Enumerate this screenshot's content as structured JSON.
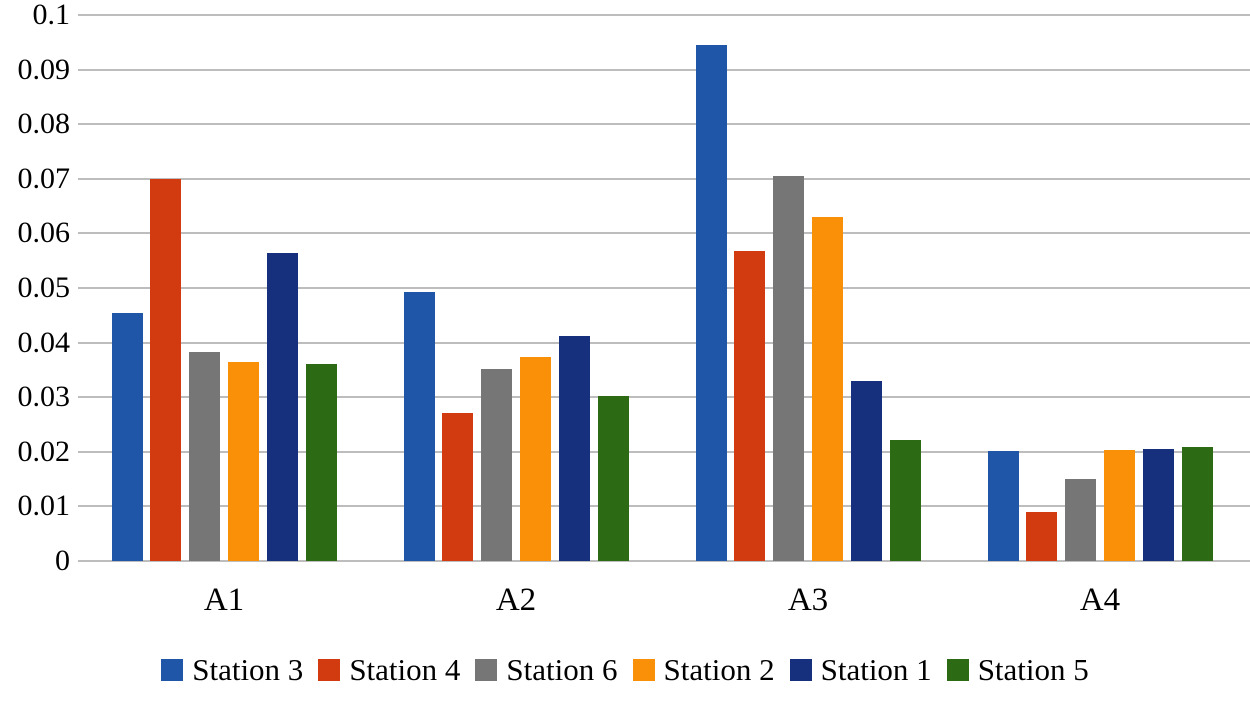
{
  "chart_data": {
    "type": "bar",
    "title": "",
    "xlabel": "",
    "ylabel": "",
    "categories": [
      "A1",
      "A2",
      "A3",
      "A4"
    ],
    "series": [
      {
        "name": "Station 3",
        "color": "#1F56A7",
        "values": [
          0.0455,
          0.0492,
          0.0945,
          0.0201
        ]
      },
      {
        "name": "Station 4",
        "color": "#D23A10",
        "values": [
          0.07,
          0.0271,
          0.0568,
          0.0089
        ]
      },
      {
        "name": "Station 6",
        "color": "#767676",
        "values": [
          0.0382,
          0.0351,
          0.0705,
          0.015
        ]
      },
      {
        "name": "Station 2",
        "color": "#FA9008",
        "values": [
          0.0364,
          0.0374,
          0.063,
          0.0204
        ]
      },
      {
        "name": "Station 1",
        "color": "#16307D",
        "values": [
          0.0565,
          0.0413,
          0.033,
          0.0206
        ]
      },
      {
        "name": "Station 5",
        "color": "#2C6B14",
        "values": [
          0.036,
          0.0302,
          0.0221,
          0.0208
        ]
      }
    ],
    "ylim": [
      0,
      0.1
    ],
    "y_tick_labels": [
      "0.1",
      "0.09",
      "0.08",
      "0.07",
      "0.06",
      "0.05",
      "0.04",
      "0.03",
      "0.02",
      "0.01",
      "0"
    ],
    "y_tick_step": 0.01,
    "grid": true,
    "gridline_color": "#BDBDBD",
    "text_color": "#000000",
    "legend_position": "bottom"
  }
}
